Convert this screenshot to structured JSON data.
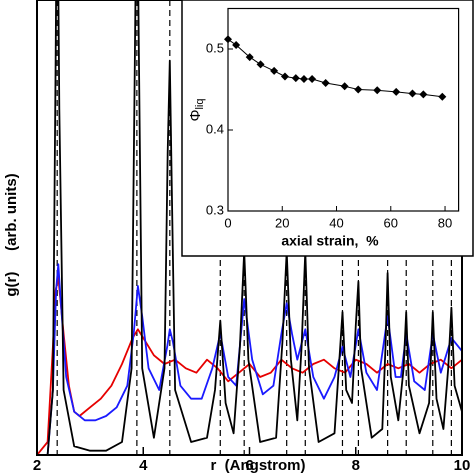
{
  "chart_data": [
    {
      "type": "line",
      "xlabel": "r  (Angstrom)",
      "ylabel": "g(r)     (arb. units)",
      "xlim": [
        2,
        10
      ],
      "ylim": [
        0,
        10.5
      ],
      "xticks": [
        2,
        4,
        6,
        8,
        10
      ],
      "peaks": [
        2.38,
        3.88,
        4.5,
        5.45,
        5.9,
        6.7,
        7.05,
        7.75,
        8.05,
        8.6,
        8.95,
        9.45,
        9.8
      ],
      "series": [
        {
          "color": "#000000",
          "x": [
            2.0,
            2.2,
            2.3,
            2.35,
            2.38,
            2.42,
            2.5,
            2.7,
            3.0,
            3.3,
            3.6,
            3.78,
            3.84,
            3.88,
            3.92,
            3.98,
            4.2,
            4.4,
            4.46,
            4.5,
            4.54,
            4.6,
            4.9,
            5.2,
            5.35,
            5.45,
            5.55,
            5.7,
            5.82,
            5.9,
            5.98,
            6.2,
            6.5,
            6.62,
            6.7,
            6.78,
            6.9,
            6.98,
            7.05,
            7.12,
            7.3,
            7.6,
            7.68,
            7.75,
            7.82,
            7.93,
            8.0,
            8.05,
            8.1,
            8.3,
            8.5,
            8.56,
            8.6,
            8.66,
            8.8,
            8.9,
            8.95,
            9.0,
            9.2,
            9.38,
            9.45,
            9.52,
            9.65,
            9.74,
            9.8,
            9.86,
            10.0
          ],
          "values": [
            0,
            0,
            1.5,
            9,
            14,
            8,
            1.5,
            0.2,
            0.1,
            0.1,
            0.3,
            2,
            9,
            14,
            9,
            2,
            0.4,
            2,
            7,
            9.1,
            6,
            1.5,
            0.3,
            0.4,
            1.5,
            3.1,
            1.2,
            0.5,
            2.5,
            4.7,
            2.2,
            0.3,
            0.4,
            2.6,
            4.7,
            2.2,
            0.8,
            2.5,
            4.7,
            2,
            0.3,
            0.5,
            2,
            3.3,
            1.5,
            1.2,
            3,
            4,
            2,
            0.4,
            0.6,
            2.5,
            4.2,
            1.8,
            0.8,
            2,
            3.3,
            1.6,
            0.5,
            1.2,
            3.3,
            1.3,
            0.6,
            2,
            3.4,
            1.6,
            1.0
          ]
        },
        {
          "color": "#1a1aff",
          "x": [
            2.0,
            2.2,
            2.3,
            2.36,
            2.4,
            2.45,
            2.55,
            2.7,
            2.9,
            3.1,
            3.3,
            3.5,
            3.7,
            3.82,
            3.9,
            3.98,
            4.1,
            4.3,
            4.45,
            4.5,
            4.56,
            4.7,
            4.9,
            5.1,
            5.3,
            5.45,
            5.6,
            5.75,
            5.9,
            6.05,
            6.25,
            6.45,
            6.6,
            6.7,
            6.8,
            6.9,
            7.05,
            7.2,
            7.4,
            7.6,
            7.75,
            7.9,
            8.05,
            8.2,
            8.4,
            8.6,
            8.75,
            8.85,
            8.95,
            9.1,
            9.3,
            9.45,
            9.6,
            9.8,
            10.0
          ],
          "values": [
            0,
            0,
            1.5,
            3.8,
            4.4,
            3.5,
            1.8,
            1,
            0.8,
            0.8,
            0.9,
            1.1,
            1.6,
            2.8,
            3.9,
            3.2,
            2,
            1.5,
            2.5,
            2.9,
            2.6,
            1.6,
            1.3,
            1.3,
            2,
            2.8,
            1.8,
            1.6,
            3.6,
            2.2,
            1.4,
            1.6,
            2.8,
            3.5,
            2.8,
            2.2,
            2.9,
            1.8,
            1.3,
            1.8,
            2.5,
            1.8,
            2.9,
            1.9,
            1.5,
            3.2,
            1.8,
            1.8,
            2.8,
            1.7,
            1.5,
            2.8,
            1.9,
            2.7,
            2.4
          ]
        },
        {
          "color": "#e60000",
          "x": [
            2.0,
            2.2,
            2.3,
            2.35,
            2.4,
            2.5,
            2.6,
            2.7,
            2.8,
            3.0,
            3.2,
            3.4,
            3.6,
            3.8,
            3.9,
            4.0,
            4.2,
            4.4,
            4.6,
            4.8,
            5.0,
            5.2,
            5.4,
            5.6,
            5.8,
            6.0,
            6.2,
            6.4,
            6.6,
            6.8,
            7.0,
            7.2,
            7.4,
            7.6,
            7.8,
            8.0,
            8.2,
            8.4,
            8.6,
            8.8,
            9.0,
            9.2,
            9.4,
            9.6,
            9.8,
            10.0
          ],
          "values": [
            0,
            0.3,
            2.5,
            3.8,
            4.1,
            2.8,
            1.6,
            1.0,
            0.9,
            1.1,
            1.3,
            1.6,
            2.1,
            2.7,
            2.9,
            2.7,
            2.3,
            2.1,
            2.2,
            2.0,
            1.9,
            2.2,
            2.0,
            1.7,
            1.9,
            2.1,
            1.8,
            1.9,
            2.2,
            2.0,
            1.9,
            2.1,
            2.2,
            2.0,
            1.9,
            2.2,
            2.1,
            1.9,
            2.1,
            2.0,
            2.1,
            1.9,
            2.1,
            2.2,
            2.0,
            2.2
          ]
        }
      ]
    },
    {
      "type": "line",
      "xlabel": "axial strain,  %",
      "ylabel": {
        "symbol": "Φ",
        "subscript": "liq"
      },
      "xlim": [
        0,
        85
      ],
      "ylim": [
        0.3,
        0.55
      ],
      "xticks": [
        0,
        20,
        40,
        60,
        80
      ],
      "yticks": [
        0.3,
        0.4,
        0.5
      ],
      "series": [
        {
          "color": "#000000",
          "x": [
            0,
            3,
            8,
            12,
            17,
            21,
            25,
            28,
            31,
            36,
            43,
            48,
            55,
            62,
            68,
            72,
            79
          ],
          "values": [
            0.512,
            0.505,
            0.49,
            0.481,
            0.473,
            0.466,
            0.464,
            0.463,
            0.463,
            0.458,
            0.454,
            0.45,
            0.449,
            0.447,
            0.445,
            0.444,
            0.441
          ]
        }
      ]
    }
  ]
}
